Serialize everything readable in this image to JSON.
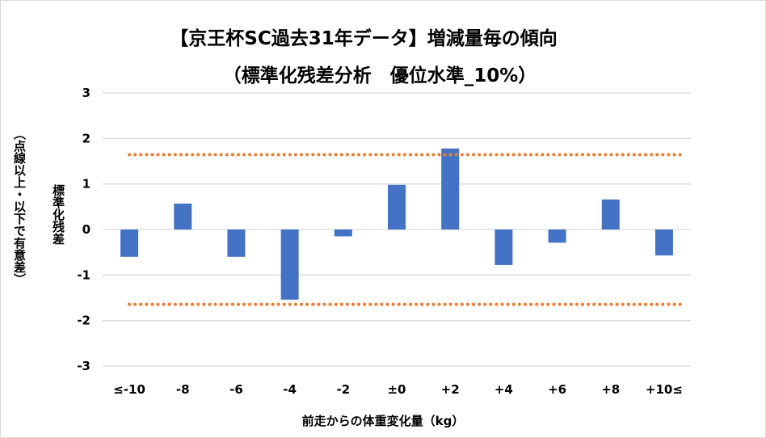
{
  "chart_data": {
    "type": "bar",
    "title": "【京王杯SC過去31年データ】増減量毎の傾向",
    "subtitle": "（標準化残差分析　優位水準_10%）",
    "xlabel": "前走からの体重変化量（kg）",
    "ylabel": "標準化残差",
    "ylabel_note": "（点線以上・以下で有意差）",
    "categories": [
      "≤-10",
      "-8",
      "-6",
      "-4",
      "-2",
      "±0",
      "+2",
      "+4",
      "+6",
      "+8",
      "+10≤"
    ],
    "values": [
      -0.6,
      0.57,
      -0.6,
      -1.54,
      -0.15,
      0.98,
      1.78,
      -0.78,
      -0.29,
      0.66,
      -0.57
    ],
    "ylim": [
      -3,
      3
    ],
    "yticks": [
      "3",
      "2",
      "1",
      "0",
      "-1",
      "-2",
      "-3"
    ],
    "threshold_lines": [
      1.645,
      -1.645
    ],
    "grid": true,
    "colors": {
      "bar": "#4472c4",
      "threshold": "#ed7d31",
      "grid": "#d9d9d9"
    }
  }
}
